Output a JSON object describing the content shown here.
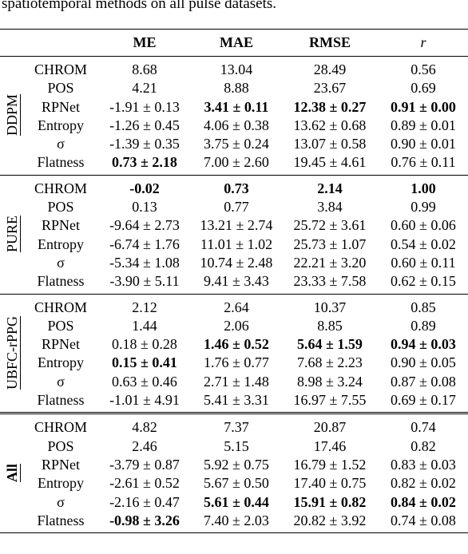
{
  "caption": "spatiotemporal methods on all pulse datasets.",
  "header": [
    "ME",
    "MAE",
    "RMSE",
    "r"
  ],
  "groups": [
    {
      "label": "DDPM",
      "rows": [
        [
          "CHROM",
          "8.68",
          "13.04",
          "28.49",
          "0.56"
        ],
        [
          "POS",
          "4.21",
          "8.88",
          "23.67",
          "0.69"
        ],
        [
          "RPNet",
          "-1.91 ± 0.13",
          {
            "text": "3.41 ± 0.11",
            "bold": true
          },
          {
            "text": "12.38 ± 0.27",
            "bold": true
          },
          {
            "text": "0.91 ± 0.00",
            "bold": true
          }
        ],
        [
          "Entropy",
          "-1.26 ± 0.45",
          "4.06 ± 0.38",
          "13.62 ± 0.68",
          "0.89 ± 0.01"
        ],
        [
          "σ",
          "-1.39 ± 0.35",
          "3.75 ± 0.24",
          "13.07 ± 0.58",
          "0.90 ± 0.01"
        ],
        [
          "Flatness",
          {
            "text": "0.73 ± 2.18",
            "bold": true
          },
          "7.00 ± 2.60",
          "19.45 ± 4.61",
          "0.76 ± 0.11"
        ]
      ]
    },
    {
      "label": "PURE",
      "rows": [
        [
          "CHROM",
          {
            "text": "-0.02",
            "bold": true
          },
          {
            "text": "0.73",
            "bold": true
          },
          {
            "text": "2.14",
            "bold": true
          },
          {
            "text": "1.00",
            "bold": true
          }
        ],
        [
          "POS",
          "0.13",
          "0.77",
          "3.84",
          "0.99"
        ],
        [
          "RPNet",
          "-9.64 ± 2.73",
          "13.21 ± 2.74",
          "25.72 ± 3.61",
          "0.60 ± 0.06"
        ],
        [
          "Entropy",
          "-6.74 ± 1.76",
          "11.01 ± 1.02",
          "25.73 ± 1.07",
          "0.54 ± 0.02"
        ],
        [
          "σ",
          "-5.34 ± 1.08",
          "10.74 ± 2.48",
          "22.21 ± 3.20",
          "0.60 ± 0.11"
        ],
        [
          "Flatness",
          "-3.90 ± 5.11",
          "9.41 ± 3.43",
          "23.33 ± 7.58",
          "0.62 ± 0.15"
        ]
      ]
    },
    {
      "label": "UBFC-rPPG",
      "rows": [
        [
          "CHROM",
          "2.12",
          "2.64",
          "10.37",
          "0.85"
        ],
        [
          "POS",
          "1.44",
          "2.06",
          "8.85",
          "0.89"
        ],
        [
          "RPNet",
          "0.18 ± 0.28",
          {
            "text": "1.46 ± 0.52",
            "bold": true
          },
          {
            "text": "5.64 ± 1.59",
            "bold": true
          },
          {
            "text": "0.94 ± 0.03",
            "bold": true
          }
        ],
        [
          "Entropy",
          {
            "text": "0.15 ± 0.41",
            "bold": true
          },
          "1.76 ± 0.77",
          "7.68 ± 2.23",
          "0.90 ± 0.05"
        ],
        [
          "σ",
          "0.63 ± 0.46",
          "2.71 ± 1.48",
          "8.98 ± 3.24",
          "0.87 ± 0.08"
        ],
        [
          "Flatness",
          "-1.01 ± 4.91",
          "5.41 ± 3.31",
          "16.97 ± 7.55",
          "0.69 ± 0.17"
        ]
      ]
    },
    {
      "label": "All",
      "bold": true,
      "rows": [
        [
          "CHROM",
          "4.82",
          "7.37",
          "20.87",
          "0.74"
        ],
        [
          "POS",
          "2.46",
          "5.15",
          "17.46",
          "0.82"
        ],
        [
          "RPNet",
          "-3.79 ± 0.87",
          "5.92 ± 0.75",
          "16.79 ± 1.52",
          "0.83 ± 0.03"
        ],
        [
          "Entropy",
          "-2.61 ± 0.52",
          "5.67 ± 0.50",
          "17.40 ± 0.75",
          "0.82 ± 0.02"
        ],
        [
          "σ",
          "-2.16 ± 0.47",
          {
            "text": "5.61 ± 0.44",
            "bold": true
          },
          {
            "text": "15.91 ± 0.82",
            "bold": true
          },
          {
            "text": "0.84 ± 0.02",
            "bold": true
          }
        ],
        [
          "Flatness",
          {
            "text": "-0.98 ± 3.26",
            "bold": true
          },
          "7.40 ± 2.03",
          "20.82 ± 3.92",
          "0.74 ± 0.08"
        ]
      ]
    }
  ]
}
